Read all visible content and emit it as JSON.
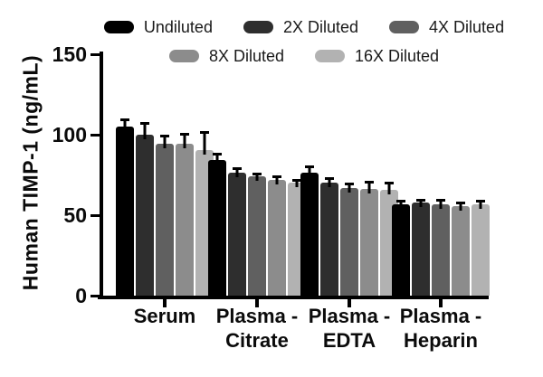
{
  "figure": {
    "background": "#ffffff",
    "text_color": "#0b0b0b"
  },
  "chart_data": {
    "type": "bar",
    "title": "",
    "xlabel": "",
    "ylabel": "Human TIMP-1 (ng/mL)",
    "ylim": [
      0,
      150
    ],
    "yticks": [
      "0",
      "50",
      "100",
      "150"
    ],
    "grid": false,
    "legend_position": "top",
    "legend_rows": [
      [
        "Undiluted",
        "2X Diluted",
        "4X Diluted"
      ],
      [
        "8X Diluted",
        "16X Diluted"
      ]
    ],
    "categories": [
      "Serum",
      "Plasma - Citrate",
      "Plasma - EDTA",
      "Plasma - Heparin"
    ],
    "category_label_lines": [
      [
        "Serum"
      ],
      [
        "Plasma -",
        "Citrate"
      ],
      [
        "Plasma -",
        "EDTA"
      ],
      [
        "Plasma -",
        "Heparin"
      ]
    ],
    "error_bars": true,
    "series": [
      {
        "name": "Undiluted",
        "color": "#000000",
        "values": [
          105.0,
          84.0,
          76.5,
          57.0
        ],
        "errors": [
          3.5,
          3.0,
          2.5,
          1.0
        ]
      },
      {
        "name": "2X Diluted",
        "color": "#2e2e2e",
        "values": [
          100.0,
          76.5,
          70.5,
          58.0
        ],
        "errors": [
          6.0,
          1.5,
          1.5,
          0.5
        ]
      },
      {
        "name": "4X Diluted",
        "color": "#606060",
        "values": [
          94.5,
          74.0,
          67.0,
          57.0
        ],
        "errors": [
          4.0,
          1.0,
          1.5,
          1.5
        ]
      },
      {
        "name": "8X Diluted",
        "color": "#8c8c8c",
        "values": [
          94.5,
          72.0,
          66.5,
          55.5
        ],
        "errors": [
          5.0,
          1.0,
          3.0,
          1.0
        ]
      },
      {
        "name": "16X Diluted",
        "color": "#b2b2b2",
        "values": [
          90.5,
          70.0,
          66.0,
          56.5
        ],
        "errors": [
          10.0,
          1.0,
          3.0,
          1.5
        ]
      }
    ]
  }
}
